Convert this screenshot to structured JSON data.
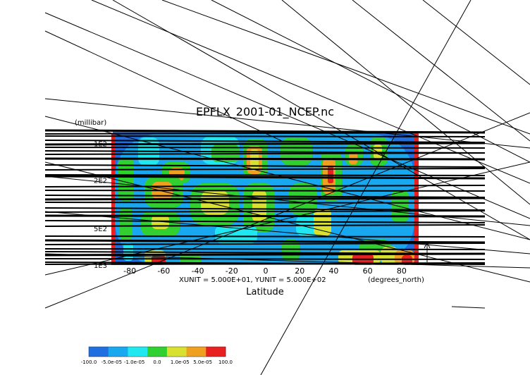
{
  "chart_data": {
    "type": "heatmap",
    "title": "EPFLX_2001-01_NCEP.nc",
    "xlabel": "Latitude",
    "x_units": "(degrees_north)",
    "y_units": "(millibar)",
    "unit_note": "XUNIT = 5.000E+01, YUNIT = 5.000E+02",
    "x_ticks": [
      "-80",
      "-60",
      "-40",
      "-20",
      "0",
      "20",
      "40",
      "60",
      "80"
    ],
    "y_ticks": [
      "1E2",
      "2E2",
      "5E2",
      "1E3"
    ],
    "y_scale": "log",
    "xlim": [
      -90,
      90
    ],
    "ylim": [
      1000,
      80
    ],
    "colorbar": {
      "labels": [
        "-100.0",
        "-5.0e-05",
        "-1.0e-05",
        "0.0",
        "1.0e-05",
        "5.0e-05",
        "100.0"
      ],
      "colors": [
        "#1f6fe0",
        "#18a8f0",
        "#20e8f0",
        "#30d030",
        "#d8e030",
        "#f0a020",
        "#e82020"
      ]
    }
  }
}
